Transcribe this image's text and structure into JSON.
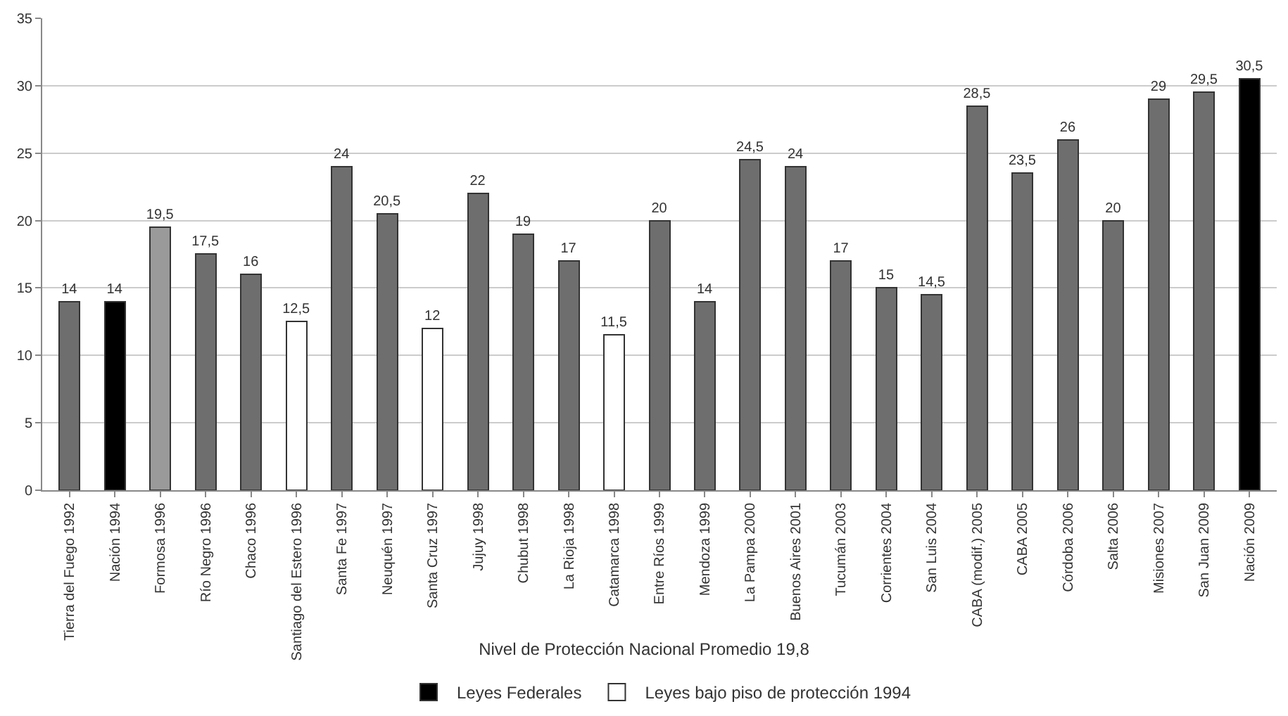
{
  "chart_data": {
    "type": "bar",
    "title": "Nivel de Protección Nacional Promedio 19,8",
    "categories": [
      "Tierra del Fuego 1992",
      "Nación 1994",
      "Formosa 1996",
      "Río Negro 1996",
      "Chaco 1996",
      "Santiago del Estero 1996",
      "Santa Fe 1997",
      "Neuquén 1997",
      "Santa Cruz 1997",
      "Jujuy 1998",
      "Chubut 1998",
      "La Rioja 1998",
      "Catamarca 1998",
      "Entre Ríos 1999",
      "Mendoza 1999",
      "La Pampa 2000",
      "Buenos Aires 2001",
      "Tucumán 2003",
      "Corrientes 2004",
      "San Luis 2004",
      "CABA (modif.) 2005",
      "CABA 2005",
      "Córdoba 2006",
      "Salta 2006",
      "Misiones 2007",
      "San Juan 2009",
      "Nación 2009"
    ],
    "series": [
      {
        "color": "#6e6e6e",
        "colors": [
          "#6e6e6e",
          null,
          "#9a9a9a",
          "#6e6e6e",
          "#6e6e6e",
          null,
          "#6e6e6e",
          "#6e6e6e",
          null,
          "#6e6e6e",
          "#6e6e6e",
          "#6e6e6e",
          null,
          "#6e6e6e",
          "#6e6e6e",
          "#6e6e6e",
          "#6e6e6e",
          "#6e6e6e",
          "#6e6e6e",
          "#6e6e6e",
          "#6e6e6e",
          "#6e6e6e",
          "#6e6e6e",
          "#6e6e6e",
          "#6e6e6e",
          "#6e6e6e",
          null
        ],
        "values": [
          14,
          null,
          19.5,
          17.5,
          16,
          null,
          24,
          20.5,
          null,
          22,
          19,
          17,
          null,
          20,
          14,
          24.5,
          24,
          17,
          15,
          14.5,
          28.5,
          23.5,
          26,
          20,
          29,
          29.5,
          null
        ],
        "value_labels": [
          "14",
          null,
          "19,5",
          "17,5",
          "16",
          null,
          "24",
          "20,5",
          null,
          "22",
          "19",
          "17",
          null,
          "20",
          "14",
          "24,5",
          "24",
          "17",
          "15",
          "14,5",
          "28,5",
          "23,5",
          "26",
          "20",
          "29",
          "29,5",
          null
        ]
      },
      {
        "name": "Leyes Federales",
        "color": "#000000",
        "values": [
          null,
          14,
          null,
          null,
          null,
          null,
          null,
          null,
          null,
          null,
          null,
          null,
          null,
          null,
          null,
          null,
          null,
          null,
          null,
          null,
          null,
          null,
          null,
          null,
          null,
          null,
          30.5
        ],
        "value_labels": [
          null,
          "14",
          null,
          null,
          null,
          null,
          null,
          null,
          null,
          null,
          null,
          null,
          null,
          null,
          null,
          null,
          null,
          null,
          null,
          null,
          null,
          null,
          null,
          null,
          null,
          null,
          "30,5"
        ]
      },
      {
        "name": "Leyes bajo piso de protección 1994",
        "color": "#ffffff",
        "values": [
          null,
          null,
          null,
          null,
          null,
          12.5,
          null,
          null,
          12,
          null,
          null,
          null,
          11.5,
          null,
          null,
          null,
          null,
          null,
          null,
          null,
          null,
          null,
          null,
          null,
          null,
          null,
          null
        ],
        "value_labels": [
          null,
          null,
          null,
          null,
          null,
          "12,5",
          null,
          null,
          "12",
          null,
          null,
          null,
          "11,5",
          null,
          null,
          null,
          null,
          null,
          null,
          null,
          null,
          null,
          null,
          null,
          null,
          null,
          null
        ]
      }
    ],
    "stacked": true,
    "ylim": [
      0,
      35
    ],
    "yticks": [
      0,
      5,
      10,
      15,
      20,
      25,
      30,
      35
    ],
    "grid": "y",
    "legend": "bottom"
  }
}
